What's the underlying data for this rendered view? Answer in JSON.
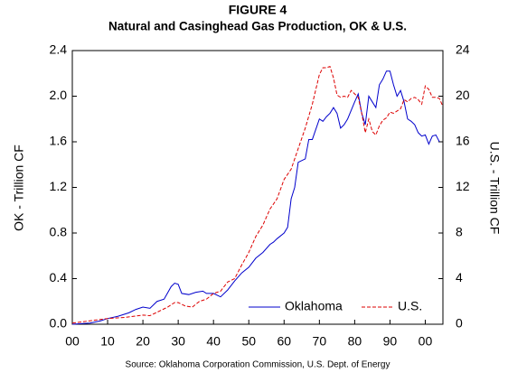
{
  "chart_data": {
    "type": "line",
    "title": "FIGURE 4",
    "subtitle": "Natural and Casinghead Gas Production, OK & U.S.",
    "ylabel": "OK - Trillion CF",
    "y2label": "U.S. - Trillion CF",
    "source": "Source: Oklahoma Corporation Commission, U.S. Dept. of Energy",
    "xlim": [
      1900,
      2005
    ],
    "xticks": [
      {
        "value": 1900,
        "label": "00"
      },
      {
        "value": 1910,
        "label": "10"
      },
      {
        "value": 1920,
        "label": "20"
      },
      {
        "value": 1930,
        "label": "30"
      },
      {
        "value": 1940,
        "label": "40"
      },
      {
        "value": 1950,
        "label": "50"
      },
      {
        "value": 1960,
        "label": "60"
      },
      {
        "value": 1970,
        "label": "70"
      },
      {
        "value": 1980,
        "label": "80"
      },
      {
        "value": 1990,
        "label": "90"
      },
      {
        "value": 2000,
        "label": "00"
      }
    ],
    "ylim": [
      0,
      2.4
    ],
    "yticks": [
      {
        "value": 0,
        "label": "0.0"
      },
      0.4,
      0.8,
      1.2,
      1.6,
      {
        "value": 2,
        "label": "2.0"
      },
      2.4
    ],
    "y2lim": [
      0,
      24
    ],
    "y2ticks": [
      0,
      4,
      8,
      12,
      16,
      20,
      24
    ],
    "legend": "lower right",
    "grid": false,
    "series": [
      {
        "name": "Oklahoma",
        "color": "#0000cc",
        "dash": false,
        "x": [
          1900,
          1905,
          1908,
          1910,
          1913,
          1916,
          1918,
          1920,
          1922,
          1924,
          1926,
          1928,
          1929,
          1930,
          1931,
          1933,
          1935,
          1937,
          1938,
          1940,
          1942,
          1944,
          1946,
          1948,
          1950,
          1952,
          1954,
          1956,
          1957,
          1958,
          1960,
          1961,
          1962,
          1963,
          1964,
          1966,
          1967,
          1968,
          1970,
          1971,
          1972,
          1973,
          1974,
          1975,
          1976,
          1977,
          1978,
          1980,
          1981,
          1982,
          1983,
          1984,
          1985,
          1986,
          1987,
          1988,
          1989,
          1990,
          1991,
          1992,
          1993,
          1994,
          1995,
          1996,
          1997,
          1998,
          1999,
          2000,
          2001,
          2002,
          2003,
          2004
        ],
        "values": [
          0.0,
          0.01,
          0.03,
          0.05,
          0.07,
          0.1,
          0.13,
          0.15,
          0.14,
          0.2,
          0.22,
          0.33,
          0.36,
          0.35,
          0.27,
          0.26,
          0.28,
          0.29,
          0.27,
          0.27,
          0.24,
          0.3,
          0.38,
          0.45,
          0.5,
          0.58,
          0.63,
          0.7,
          0.72,
          0.75,
          0.8,
          0.85,
          1.1,
          1.2,
          1.42,
          1.45,
          1.62,
          1.62,
          1.8,
          1.78,
          1.82,
          1.85,
          1.9,
          1.85,
          1.72,
          1.75,
          1.8,
          1.95,
          2.02,
          1.85,
          1.75,
          2.0,
          1.95,
          1.9,
          2.1,
          2.15,
          2.22,
          2.22,
          2.1,
          2.0,
          2.05,
          1.95,
          1.8,
          1.78,
          1.75,
          1.68,
          1.65,
          1.66,
          1.58,
          1.65,
          1.66,
          1.6
        ]
      },
      {
        "name": "U.S.",
        "color": "#dd0000",
        "dash": true,
        "axis": "y2",
        "x": [
          1900,
          1905,
          1910,
          1915,
          1920,
          1922,
          1925,
          1927,
          1929,
          1930,
          1932,
          1934,
          1936,
          1938,
          1940,
          1942,
          1944,
          1946,
          1948,
          1950,
          1952,
          1954,
          1955,
          1956,
          1958,
          1960,
          1962,
          1964,
          1966,
          1968,
          1970,
          1971,
          1972,
          1973,
          1974,
          1975,
          1976,
          1977,
          1978,
          1979,
          1980,
          1981,
          1982,
          1983,
          1984,
          1985,
          1986,
          1987,
          1988,
          1989,
          1990,
          1991,
          1992,
          1993,
          1994,
          1995,
          1996,
          1997,
          1998,
          1999,
          2000,
          2001,
          2002,
          2003,
          2004,
          2005
        ],
        "values": [
          0.1,
          0.3,
          0.5,
          0.6,
          0.8,
          0.75,
          1.2,
          1.5,
          1.9,
          1.9,
          1.6,
          1.5,
          2.0,
          2.2,
          2.7,
          2.9,
          3.7,
          4.0,
          5.2,
          6.3,
          7.7,
          8.7,
          9.4,
          10.1,
          11.0,
          12.7,
          13.6,
          15.4,
          17.2,
          19.3,
          21.9,
          22.5,
          22.5,
          22.6,
          21.6,
          20.1,
          19.9,
          20.0,
          19.9,
          20.5,
          20.2,
          19.9,
          18.5,
          16.8,
          18.0,
          16.9,
          16.6,
          17.4,
          17.9,
          18.1,
          18.6,
          18.5,
          18.7,
          18.9,
          19.7,
          19.5,
          19.8,
          19.9,
          19.7,
          19.3,
          20.9,
          20.6,
          19.9,
          19.9,
          19.8,
          19.1
        ]
      }
    ]
  }
}
